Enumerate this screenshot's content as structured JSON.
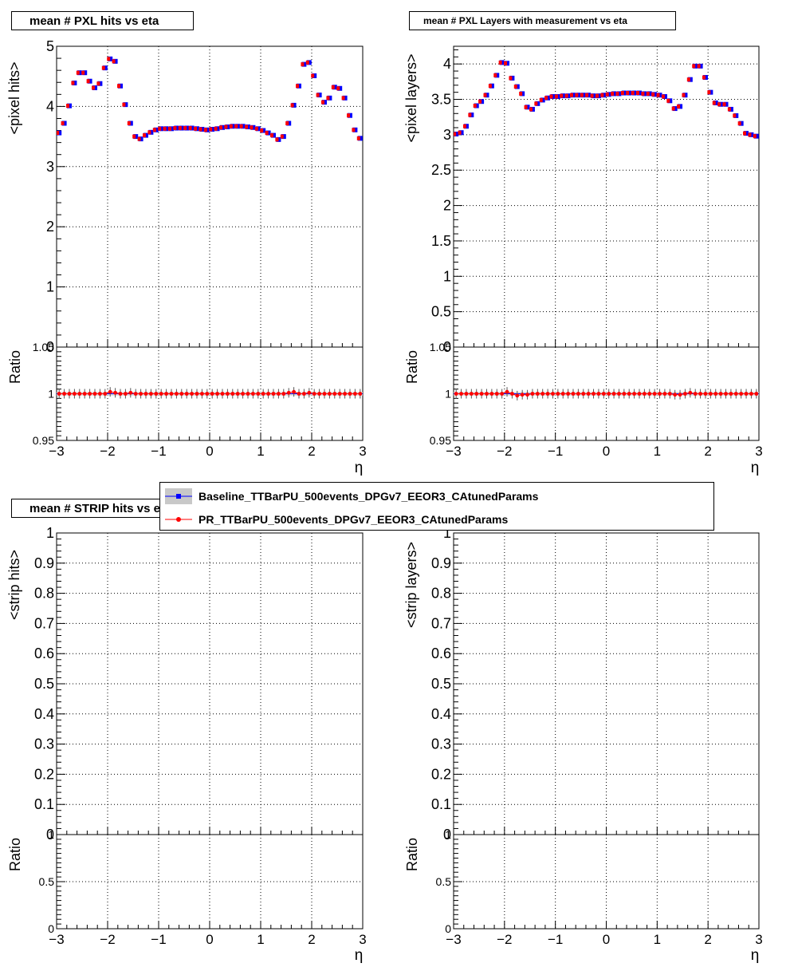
{
  "legend": {
    "entries": [
      {
        "label": "Baseline_TTBarPU_500events_DPGv7_EEOR3_CAtunedParams",
        "color": "#0000ff",
        "marker": "square",
        "band_color": "#c8c8c8"
      },
      {
        "label": "PR_TTBarPU_500events_DPGv7_EEOR3_CAtunedParams",
        "color": "#ff0000",
        "marker": "circle"
      }
    ]
  },
  "chart_data": [
    {
      "type": "scatter",
      "title": "mean # PXL hits vs eta",
      "ylabel": "<pixel hits>",
      "xlabel": "η",
      "xlim": [
        -3,
        3
      ],
      "ylim": [
        0,
        5
      ],
      "yticks": [
        "0",
        "1",
        "2",
        "3",
        "4",
        "5"
      ],
      "xticks": [
        "−3",
        "−2",
        "−1",
        "0",
        "1",
        "2",
        "3"
      ],
      "grid": true,
      "x": [
        -2.95,
        -2.85,
        -2.75,
        -2.65,
        -2.55,
        -2.45,
        -2.35,
        -2.25,
        -2.15,
        -2.05,
        -1.95,
        -1.85,
        -1.75,
        -1.65,
        -1.55,
        -1.45,
        -1.35,
        -1.25,
        -1.15,
        -1.05,
        -0.95,
        -0.85,
        -0.75,
        -0.65,
        -0.55,
        -0.45,
        -0.35,
        -0.25,
        -0.15,
        -0.05,
        0.05,
        0.15,
        0.25,
        0.35,
        0.45,
        0.55,
        0.65,
        0.75,
        0.85,
        0.95,
        1.05,
        1.15,
        1.25,
        1.35,
        1.45,
        1.55,
        1.65,
        1.75,
        1.85,
        1.95,
        2.05,
        2.15,
        2.25,
        2.35,
        2.45,
        2.55,
        2.65,
        2.75,
        2.85,
        2.95
      ],
      "series": [
        {
          "name": "Baseline_TTBarPU_500events_DPGv7_EEOR3_CAtunedParams",
          "values": [
            3.56,
            3.72,
            4.01,
            4.39,
            4.56,
            4.56,
            4.42,
            4.31,
            4.38,
            4.64,
            4.79,
            4.75,
            4.34,
            4.03,
            3.72,
            3.5,
            3.46,
            3.52,
            3.57,
            3.61,
            3.63,
            3.63,
            3.63,
            3.64,
            3.64,
            3.64,
            3.64,
            3.63,
            3.62,
            3.61,
            3.62,
            3.63,
            3.65,
            3.66,
            3.67,
            3.67,
            3.67,
            3.66,
            3.65,
            3.63,
            3.6,
            3.56,
            3.52,
            3.45,
            3.5,
            3.72,
            4.02,
            4.34,
            4.7,
            4.73,
            4.51,
            4.19,
            4.07,
            4.14,
            4.32,
            4.3,
            4.14,
            3.85,
            3.61,
            3.47
          ]
        },
        {
          "name": "PR_TTBarPU_500events_DPGv7_EEOR3_CAtunedParams",
          "values": [
            3.56,
            3.72,
            4.01,
            4.39,
            4.56,
            4.56,
            4.42,
            4.31,
            4.38,
            4.64,
            4.79,
            4.75,
            4.34,
            4.03,
            3.72,
            3.5,
            3.46,
            3.52,
            3.57,
            3.61,
            3.63,
            3.63,
            3.63,
            3.64,
            3.64,
            3.64,
            3.64,
            3.63,
            3.62,
            3.61,
            3.62,
            3.63,
            3.65,
            3.66,
            3.67,
            3.67,
            3.67,
            3.66,
            3.65,
            3.63,
            3.6,
            3.56,
            3.52,
            3.45,
            3.5,
            3.72,
            4.02,
            4.34,
            4.7,
            4.73,
            4.51,
            4.19,
            4.07,
            4.14,
            4.32,
            4.3,
            4.14,
            3.85,
            3.61,
            3.47
          ]
        }
      ],
      "ratio": {
        "ylabel": "Ratio",
        "ylim": [
          0.95,
          1.05
        ],
        "yticks": [
          "0.95",
          "1",
          "1.05"
        ],
        "values": [
          1.0,
          1.0,
          1.0,
          1.0,
          1.0,
          1.0,
          1.0,
          1.0,
          1.0,
          1.0,
          1.002,
          1.001,
          1.0,
          1.0,
          1.001,
          1.0,
          1.0,
          1.0,
          1.0,
          1.0,
          1.0,
          1.0,
          1.0,
          1.0,
          1.0,
          1.0,
          1.0,
          1.0,
          1.0,
          1.0,
          1.0,
          1.0,
          1.0,
          1.0,
          1.0,
          1.0,
          1.0,
          1.0,
          1.0,
          1.0,
          1.0,
          1.0,
          1.0,
          1.0,
          1.0,
          1.001,
          1.002,
          1.0,
          1.0,
          1.001,
          1.0,
          1.0,
          1.0,
          1.0,
          1.0,
          1.0,
          1.0,
          1.0,
          1.0,
          1.0
        ]
      }
    },
    {
      "type": "scatter",
      "title": "mean # PXL Layers with measurement vs eta",
      "ylabel": "<pixel layers>",
      "xlabel": "η",
      "xlim": [
        -3,
        3
      ],
      "ylim": [
        0,
        4.25
      ],
      "yticks": [
        "0",
        "0.5",
        "1",
        "1.5",
        "2",
        "2.5",
        "3",
        "3.5",
        "4"
      ],
      "xticks": [
        "−3",
        "−2",
        "−1",
        "0",
        "1",
        "2",
        "3"
      ],
      "grid": true,
      "x": [
        -2.95,
        -2.85,
        -2.75,
        -2.65,
        -2.55,
        -2.45,
        -2.35,
        -2.25,
        -2.15,
        -2.05,
        -1.95,
        -1.85,
        -1.75,
        -1.65,
        -1.55,
        -1.45,
        -1.35,
        -1.25,
        -1.15,
        -1.05,
        -0.95,
        -0.85,
        -0.75,
        -0.65,
        -0.55,
        -0.45,
        -0.35,
        -0.25,
        -0.15,
        -0.05,
        0.05,
        0.15,
        0.25,
        0.35,
        0.45,
        0.55,
        0.65,
        0.75,
        0.85,
        0.95,
        1.05,
        1.15,
        1.25,
        1.35,
        1.45,
        1.55,
        1.65,
        1.75,
        1.85,
        1.95,
        2.05,
        2.15,
        2.25,
        2.35,
        2.45,
        2.55,
        2.65,
        2.75,
        2.85,
        2.95
      ],
      "series": [
        {
          "name": "Baseline_TTBarPU_500events_DPGv7_EEOR3_CAtunedParams",
          "values": [
            3.01,
            3.03,
            3.12,
            3.28,
            3.41,
            3.47,
            3.56,
            3.69,
            3.84,
            4.02,
            4.01,
            3.8,
            3.68,
            3.58,
            3.39,
            3.36,
            3.44,
            3.49,
            3.52,
            3.54,
            3.54,
            3.55,
            3.55,
            3.56,
            3.56,
            3.56,
            3.56,
            3.55,
            3.55,
            3.56,
            3.57,
            3.58,
            3.58,
            3.59,
            3.59,
            3.59,
            3.59,
            3.58,
            3.58,
            3.57,
            3.56,
            3.54,
            3.48,
            3.37,
            3.4,
            3.56,
            3.78,
            3.97,
            3.97,
            3.81,
            3.6,
            3.45,
            3.43,
            3.43,
            3.36,
            3.27,
            3.16,
            3.02,
            3.0,
            2.98
          ]
        },
        {
          "name": "PR_TTBarPU_500events_DPGv7_EEOR3_CAtunedParams",
          "values": [
            3.01,
            3.03,
            3.12,
            3.28,
            3.41,
            3.47,
            3.56,
            3.69,
            3.84,
            4.02,
            4.01,
            3.8,
            3.68,
            3.58,
            3.39,
            3.36,
            3.44,
            3.49,
            3.52,
            3.54,
            3.54,
            3.55,
            3.55,
            3.56,
            3.56,
            3.56,
            3.56,
            3.55,
            3.55,
            3.56,
            3.57,
            3.58,
            3.58,
            3.59,
            3.59,
            3.59,
            3.59,
            3.58,
            3.58,
            3.57,
            3.56,
            3.54,
            3.48,
            3.37,
            3.4,
            3.56,
            3.78,
            3.97,
            3.97,
            3.81,
            3.6,
            3.45,
            3.43,
            3.43,
            3.36,
            3.27,
            3.16,
            3.02,
            3.0,
            2.98
          ]
        }
      ],
      "ratio": {
        "ylabel": "Ratio",
        "ylim": [
          0.95,
          1.05
        ],
        "yticks": [
          "0.95",
          "1",
          "1.05"
        ],
        "values": [
          1.0,
          1.0,
          1.0,
          1.0,
          1.0,
          1.0,
          1.0,
          1.0,
          1.0,
          1.0,
          1.002,
          1.0,
          0.998,
          0.999,
          0.999,
          1.0,
          1.0,
          1.0,
          1.0,
          1.0,
          1.0,
          1.0,
          1.0,
          1.0,
          1.0,
          1.0,
          1.0,
          1.0,
          1.0,
          1.0,
          1.0,
          1.0,
          1.0,
          1.0,
          1.0,
          1.0,
          1.0,
          1.0,
          1.0,
          1.0,
          1.0,
          1.0,
          1.0,
          0.999,
          0.999,
          1.0,
          1.001,
          1.0,
          1.0,
          1.0,
          1.0,
          1.0,
          1.0,
          1.0,
          1.0,
          1.0,
          1.0,
          1.0,
          1.0,
          1.0
        ]
      }
    },
    {
      "type": "scatter",
      "title": "mean # STRIP hits vs eta",
      "ylabel": "<strip hits>",
      "xlabel": "η",
      "xlim": [
        -3,
        3
      ],
      "ylim": [
        0,
        1
      ],
      "yticks": [
        "0",
        "0.1",
        "0.2",
        "0.3",
        "0.4",
        "0.5",
        "0.6",
        "0.7",
        "0.8",
        "0.9",
        "1"
      ],
      "xticks": [
        "−3",
        "−2",
        "−1",
        "0",
        "1",
        "2",
        "3"
      ],
      "grid": true,
      "x": [],
      "series": [],
      "ratio": {
        "ylabel": "Ratio",
        "ylim": [
          0,
          1
        ],
        "yticks": [
          "0",
          "0.5",
          "1"
        ],
        "values": []
      }
    },
    {
      "type": "scatter",
      "title": "",
      "ylabel": "<strip layers>",
      "xlabel": "η",
      "xlim": [
        -3,
        3
      ],
      "ylim": [
        0,
        1
      ],
      "yticks": [
        "0",
        "0.1",
        "0.2",
        "0.3",
        "0.4",
        "0.5",
        "0.6",
        "0.7",
        "0.8",
        "0.9",
        "1"
      ],
      "xticks": [
        "−3",
        "−2",
        "−1",
        "0",
        "1",
        "2",
        "3"
      ],
      "grid": true,
      "x": [],
      "series": [],
      "ratio": {
        "ylabel": "Ratio",
        "ylim": [
          0,
          1
        ],
        "yticks": [
          "0",
          "0.5",
          "1"
        ],
        "values": []
      }
    }
  ]
}
